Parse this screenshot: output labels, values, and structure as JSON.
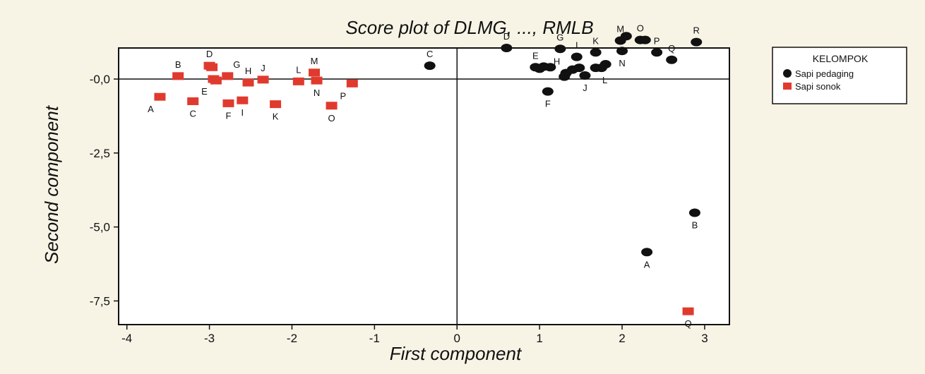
{
  "chart_data": {
    "type": "scatter",
    "title": "Score plot of DLMG, ..., RMLB",
    "xlabel": "First component",
    "ylabel": "Second component",
    "xlim": [
      -4.1,
      3.3
    ],
    "ylim": [
      -8.3,
      1.05
    ],
    "xticks": [
      -4,
      -3,
      -2,
      -1,
      0,
      1,
      2,
      3
    ],
    "xtick_labels": [
      "-4",
      "-3",
      "-2",
      "-1",
      "0",
      "1",
      "2",
      "3"
    ],
    "yticks": [
      0,
      -2.5,
      -5.0,
      -7.5
    ],
    "ytick_labels": [
      "-0,0",
      "-2,5",
      "-5,0",
      "-7,5"
    ],
    "reference_lines": {
      "x": 0,
      "y": 0
    },
    "legend": {
      "title": "KELOMPOK",
      "position": "right"
    },
    "series": [
      {
        "name": "Sapi pedaging",
        "marker": "circle",
        "color": "#111111",
        "points": [
          {
            "label": "C",
            "x": -0.33,
            "y": 0.45,
            "lx": 0,
            "ly": -1
          },
          {
            "label": "D",
            "x": 0.6,
            "y": 1.05,
            "lx": 0,
            "ly": -1
          },
          {
            "label": "E",
            "x": 0.95,
            "y": 0.4,
            "lx": 0,
            "ly": -1
          },
          {
            "label": "",
            "x": 1.0,
            "y": 0.35,
            "lx": 0,
            "ly": 0
          },
          {
            "label": "",
            "x": 1.05,
            "y": 0.42,
            "lx": 0,
            "ly": 0
          },
          {
            "label": "",
            "x": 1.13,
            "y": 0.4,
            "lx": 0,
            "ly": 0
          },
          {
            "label": "F",
            "x": 1.1,
            "y": -0.42,
            "lx": 0,
            "ly": 1
          },
          {
            "label": "G",
            "x": 1.25,
            "y": 1.02,
            "lx": 0,
            "ly": -1
          },
          {
            "label": "H",
            "x": 1.32,
            "y": 0.2,
            "lx": -1,
            "ly": -1
          },
          {
            "label": "",
            "x": 1.3,
            "y": 0.08,
            "lx": 0,
            "ly": 0
          },
          {
            "label": "",
            "x": 1.4,
            "y": 0.32,
            "lx": 0,
            "ly": 0
          },
          {
            "label": "I",
            "x": 1.45,
            "y": 0.75,
            "lx": 0,
            "ly": -1
          },
          {
            "label": "",
            "x": 1.48,
            "y": 0.38,
            "lx": 0,
            "ly": 0
          },
          {
            "label": "J",
            "x": 1.55,
            "y": 0.12,
            "lx": 0,
            "ly": 1
          },
          {
            "label": "K",
            "x": 1.68,
            "y": 0.9,
            "lx": 0,
            "ly": -1
          },
          {
            "label": "L",
            "x": 1.68,
            "y": 0.38,
            "lx": 1,
            "ly": 1
          },
          {
            "label": "",
            "x": 1.75,
            "y": 0.38,
            "lx": 0,
            "ly": 0
          },
          {
            "label": "",
            "x": 1.8,
            "y": 0.5,
            "lx": 0,
            "ly": 0
          },
          {
            "label": "M",
            "x": 1.98,
            "y": 1.3,
            "lx": 0,
            "ly": -1
          },
          {
            "label": "N",
            "x": 2.0,
            "y": 0.95,
            "lx": 0,
            "ly": 1
          },
          {
            "label": "",
            "x": 2.05,
            "y": 1.45,
            "lx": 0,
            "ly": 0
          },
          {
            "label": "O",
            "x": 2.22,
            "y": 1.32,
            "lx": 0,
            "ly": -1
          },
          {
            "label": "",
            "x": 2.28,
            "y": 1.32,
            "lx": 0,
            "ly": 0
          },
          {
            "label": "P",
            "x": 2.42,
            "y": 0.9,
            "lx": 0,
            "ly": -1
          },
          {
            "label": "Q",
            "x": 2.6,
            "y": 0.65,
            "lx": 0,
            "ly": -1
          },
          {
            "label": "R",
            "x": 2.9,
            "y": 1.25,
            "lx": 0,
            "ly": -1
          },
          {
            "label": "B",
            "x": 2.88,
            "y": -4.52,
            "lx": 0,
            "ly": 1
          },
          {
            "label": "A",
            "x": 2.3,
            "y": -5.85,
            "lx": 0,
            "ly": 1
          }
        ]
      },
      {
        "name": "Sapi sonok",
        "marker": "square",
        "color": "#e03a2e",
        "points": [
          {
            "label": "A",
            "x": -3.6,
            "y": -0.6,
            "lx": -1,
            "ly": 1
          },
          {
            "label": "B",
            "x": -3.38,
            "y": 0.1,
            "lx": 0,
            "ly": -1
          },
          {
            "label": "C",
            "x": -3.2,
            "y": -0.75,
            "lx": 0,
            "ly": 1
          },
          {
            "label": "D",
            "x": -3.0,
            "y": 0.45,
            "lx": 0,
            "ly": -1
          },
          {
            "label": "",
            "x": -2.97,
            "y": 0.4,
            "lx": 0,
            "ly": 0
          },
          {
            "label": "E",
            "x": -2.95,
            "y": 0.0,
            "lx": -1,
            "ly": 1
          },
          {
            "label": "",
            "x": -2.92,
            "y": -0.05,
            "lx": 0,
            "ly": 0
          },
          {
            "label": "G",
            "x": -2.78,
            "y": 0.1,
            "lx": 1,
            "ly": -1
          },
          {
            "label": "F",
            "x": -2.77,
            "y": -0.82,
            "lx": 0,
            "ly": 1
          },
          {
            "label": "I",
            "x": -2.6,
            "y": -0.72,
            "lx": 0,
            "ly": 1
          },
          {
            "label": "H",
            "x": -2.53,
            "y": -0.12,
            "lx": 0,
            "ly": -1
          },
          {
            "label": "J",
            "x": -2.35,
            "y": -0.02,
            "lx": 0,
            "ly": -1
          },
          {
            "label": "K",
            "x": -2.2,
            "y": -0.85,
            "lx": 0,
            "ly": 1
          },
          {
            "label": "L",
            "x": -1.92,
            "y": -0.08,
            "lx": 0,
            "ly": -1
          },
          {
            "label": "M",
            "x": -1.73,
            "y": 0.22,
            "lx": 0,
            "ly": -1
          },
          {
            "label": "N",
            "x": -1.7,
            "y": -0.05,
            "lx": 0,
            "ly": 1
          },
          {
            "label": "O",
            "x": -1.52,
            "y": -0.9,
            "lx": 0,
            "ly": 1
          },
          {
            "label": "P",
            "x": -1.27,
            "y": -0.15,
            "lx": -1,
            "ly": 1
          },
          {
            "label": "Q",
            "x": 2.8,
            "y": -7.85,
            "lx": 0,
            "ly": 1
          }
        ]
      }
    ]
  }
}
